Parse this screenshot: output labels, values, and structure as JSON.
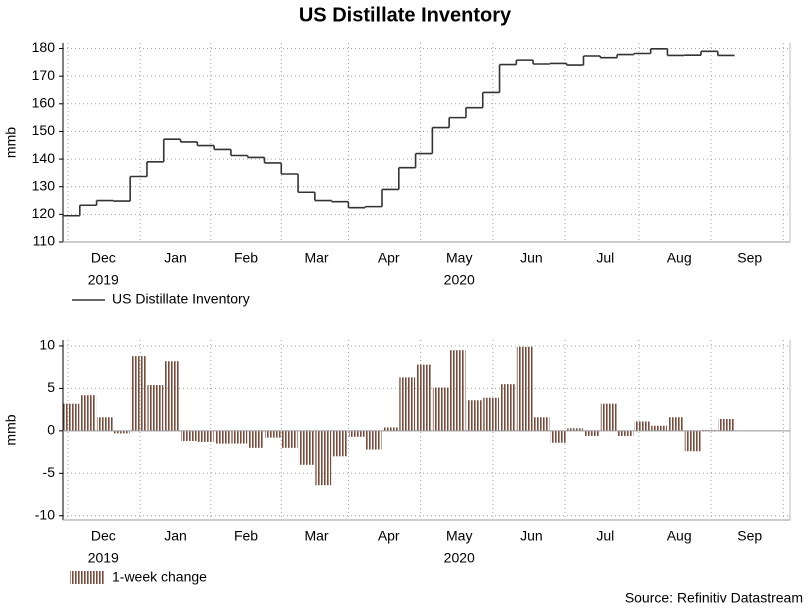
{
  "chart_data": [
    {
      "type": "line",
      "title": "US Distillate Inventory",
      "ylabel": "mmb",
      "categories": [
        null,
        null,
        null,
        null,
        null,
        null,
        null,
        null,
        null,
        null,
        null,
        null,
        null,
        null,
        null,
        null,
        null,
        null,
        null,
        null,
        null,
        null,
        null,
        null,
        null,
        null,
        null,
        null,
        null,
        null,
        null,
        null,
        null,
        null,
        null,
        null,
        null,
        null,
        null,
        null
      ],
      "series": [
        {
          "name": "US Distillate Inventory",
          "color": "#333333",
          "values": [
            119.5,
            123.3,
            125,
            124.8,
            133.7,
            139,
            147.2,
            146.2,
            144.9,
            143.5,
            141.3,
            140.6,
            138.6,
            134.6,
            128,
            125,
            124.6,
            122.4,
            122.8,
            129,
            136.9,
            142,
            151.4,
            155,
            158.6,
            164.1,
            174.2,
            175.8,
            174.4,
            174.6,
            174,
            177.3,
            176.7,
            177.8,
            178.2,
            179.9,
            177.5,
            177.6,
            179,
            177.5
          ]
        }
      ],
      "ylim": [
        110,
        182
      ],
      "yticks": [
        110,
        120,
        130,
        140,
        150,
        160,
        170,
        180
      ],
      "xlim": [
        0,
        43.3
      ],
      "xticks": [
        {
          "value": 2.4,
          "label": "Dec"
        },
        {
          "value": 6.7,
          "label": "Jan"
        },
        {
          "value": 10.9,
          "label": "Feb"
        },
        {
          "value": 15.1,
          "label": "Mar"
        },
        {
          "value": 19.4,
          "label": "Apr"
        },
        {
          "value": 23.6,
          "label": "May"
        },
        {
          "value": 27.9,
          "label": "Jun"
        },
        {
          "value": 32.3,
          "label": "Jul"
        },
        {
          "value": 36.7,
          "label": "Aug"
        },
        {
          "value": 40.9,
          "label": "Sep"
        }
      ],
      "xticks2": [
        {
          "value": 2.4,
          "label": "2019"
        },
        {
          "value": 23.6,
          "label": "2020"
        }
      ],
      "xgrid": [
        0.3,
        4.6,
        8.8,
        13.0,
        17.0,
        21.3,
        25.6,
        29.9,
        34.3,
        38.6,
        42.9
      ],
      "grid": true,
      "legend": "bottom-left"
    },
    {
      "type": "bar",
      "ylabel": "mmb",
      "categories": [
        null,
        null,
        null,
        null,
        null,
        null,
        null,
        null,
        null,
        null,
        null,
        null,
        null,
        null,
        null,
        null,
        null,
        null,
        null,
        null,
        null,
        null,
        null,
        null,
        null,
        null,
        null,
        null,
        null,
        null,
        null,
        null,
        null,
        null,
        null,
        null,
        null,
        null,
        null,
        null
      ],
      "series": [
        {
          "name": "1-week change",
          "color": "#7a4a3a",
          "values": [
            3.2,
            4.2,
            1.6,
            -0.3,
            8.8,
            5.4,
            8.2,
            -1.2,
            -1.3,
            -1.5,
            -1.5,
            -2.0,
            -0.8,
            -2.0,
            -4.0,
            -6.4,
            -3.0,
            -0.7,
            -2.2,
            0.4,
            6.3,
            7.8,
            5.1,
            9.5,
            3.6,
            3.9,
            5.5,
            9.9,
            1.6,
            -1.4,
            0.3,
            -0.6,
            3.2,
            -0.6,
            1.1,
            0.6,
            1.6,
            -2.4,
            0.1,
            1.4
          ]
        }
      ],
      "ylim": [
        -10.5,
        10.7
      ],
      "yticks": [
        -10,
        -5,
        0,
        5,
        10
      ],
      "xlim": [
        0,
        43.3
      ],
      "xticks": [
        {
          "value": 2.4,
          "label": "Dec"
        },
        {
          "value": 6.7,
          "label": "Jan"
        },
        {
          "value": 10.9,
          "label": "Feb"
        },
        {
          "value": 15.1,
          "label": "Mar"
        },
        {
          "value": 19.4,
          "label": "Apr"
        },
        {
          "value": 23.6,
          "label": "May"
        },
        {
          "value": 27.9,
          "label": "Jun"
        },
        {
          "value": 32.3,
          "label": "Jul"
        },
        {
          "value": 36.7,
          "label": "Aug"
        },
        {
          "value": 40.9,
          "label": "Sep"
        }
      ],
      "xticks2": [
        {
          "value": 2.4,
          "label": "2019"
        },
        {
          "value": 23.6,
          "label": "2020"
        }
      ],
      "xgrid": [
        0.3,
        4.6,
        8.8,
        13.0,
        17.0,
        21.3,
        25.6,
        29.9,
        34.3,
        38.6,
        42.9
      ],
      "grid": true,
      "legend": "bottom-left"
    }
  ],
  "source": "Source: Refinitiv Datastream"
}
